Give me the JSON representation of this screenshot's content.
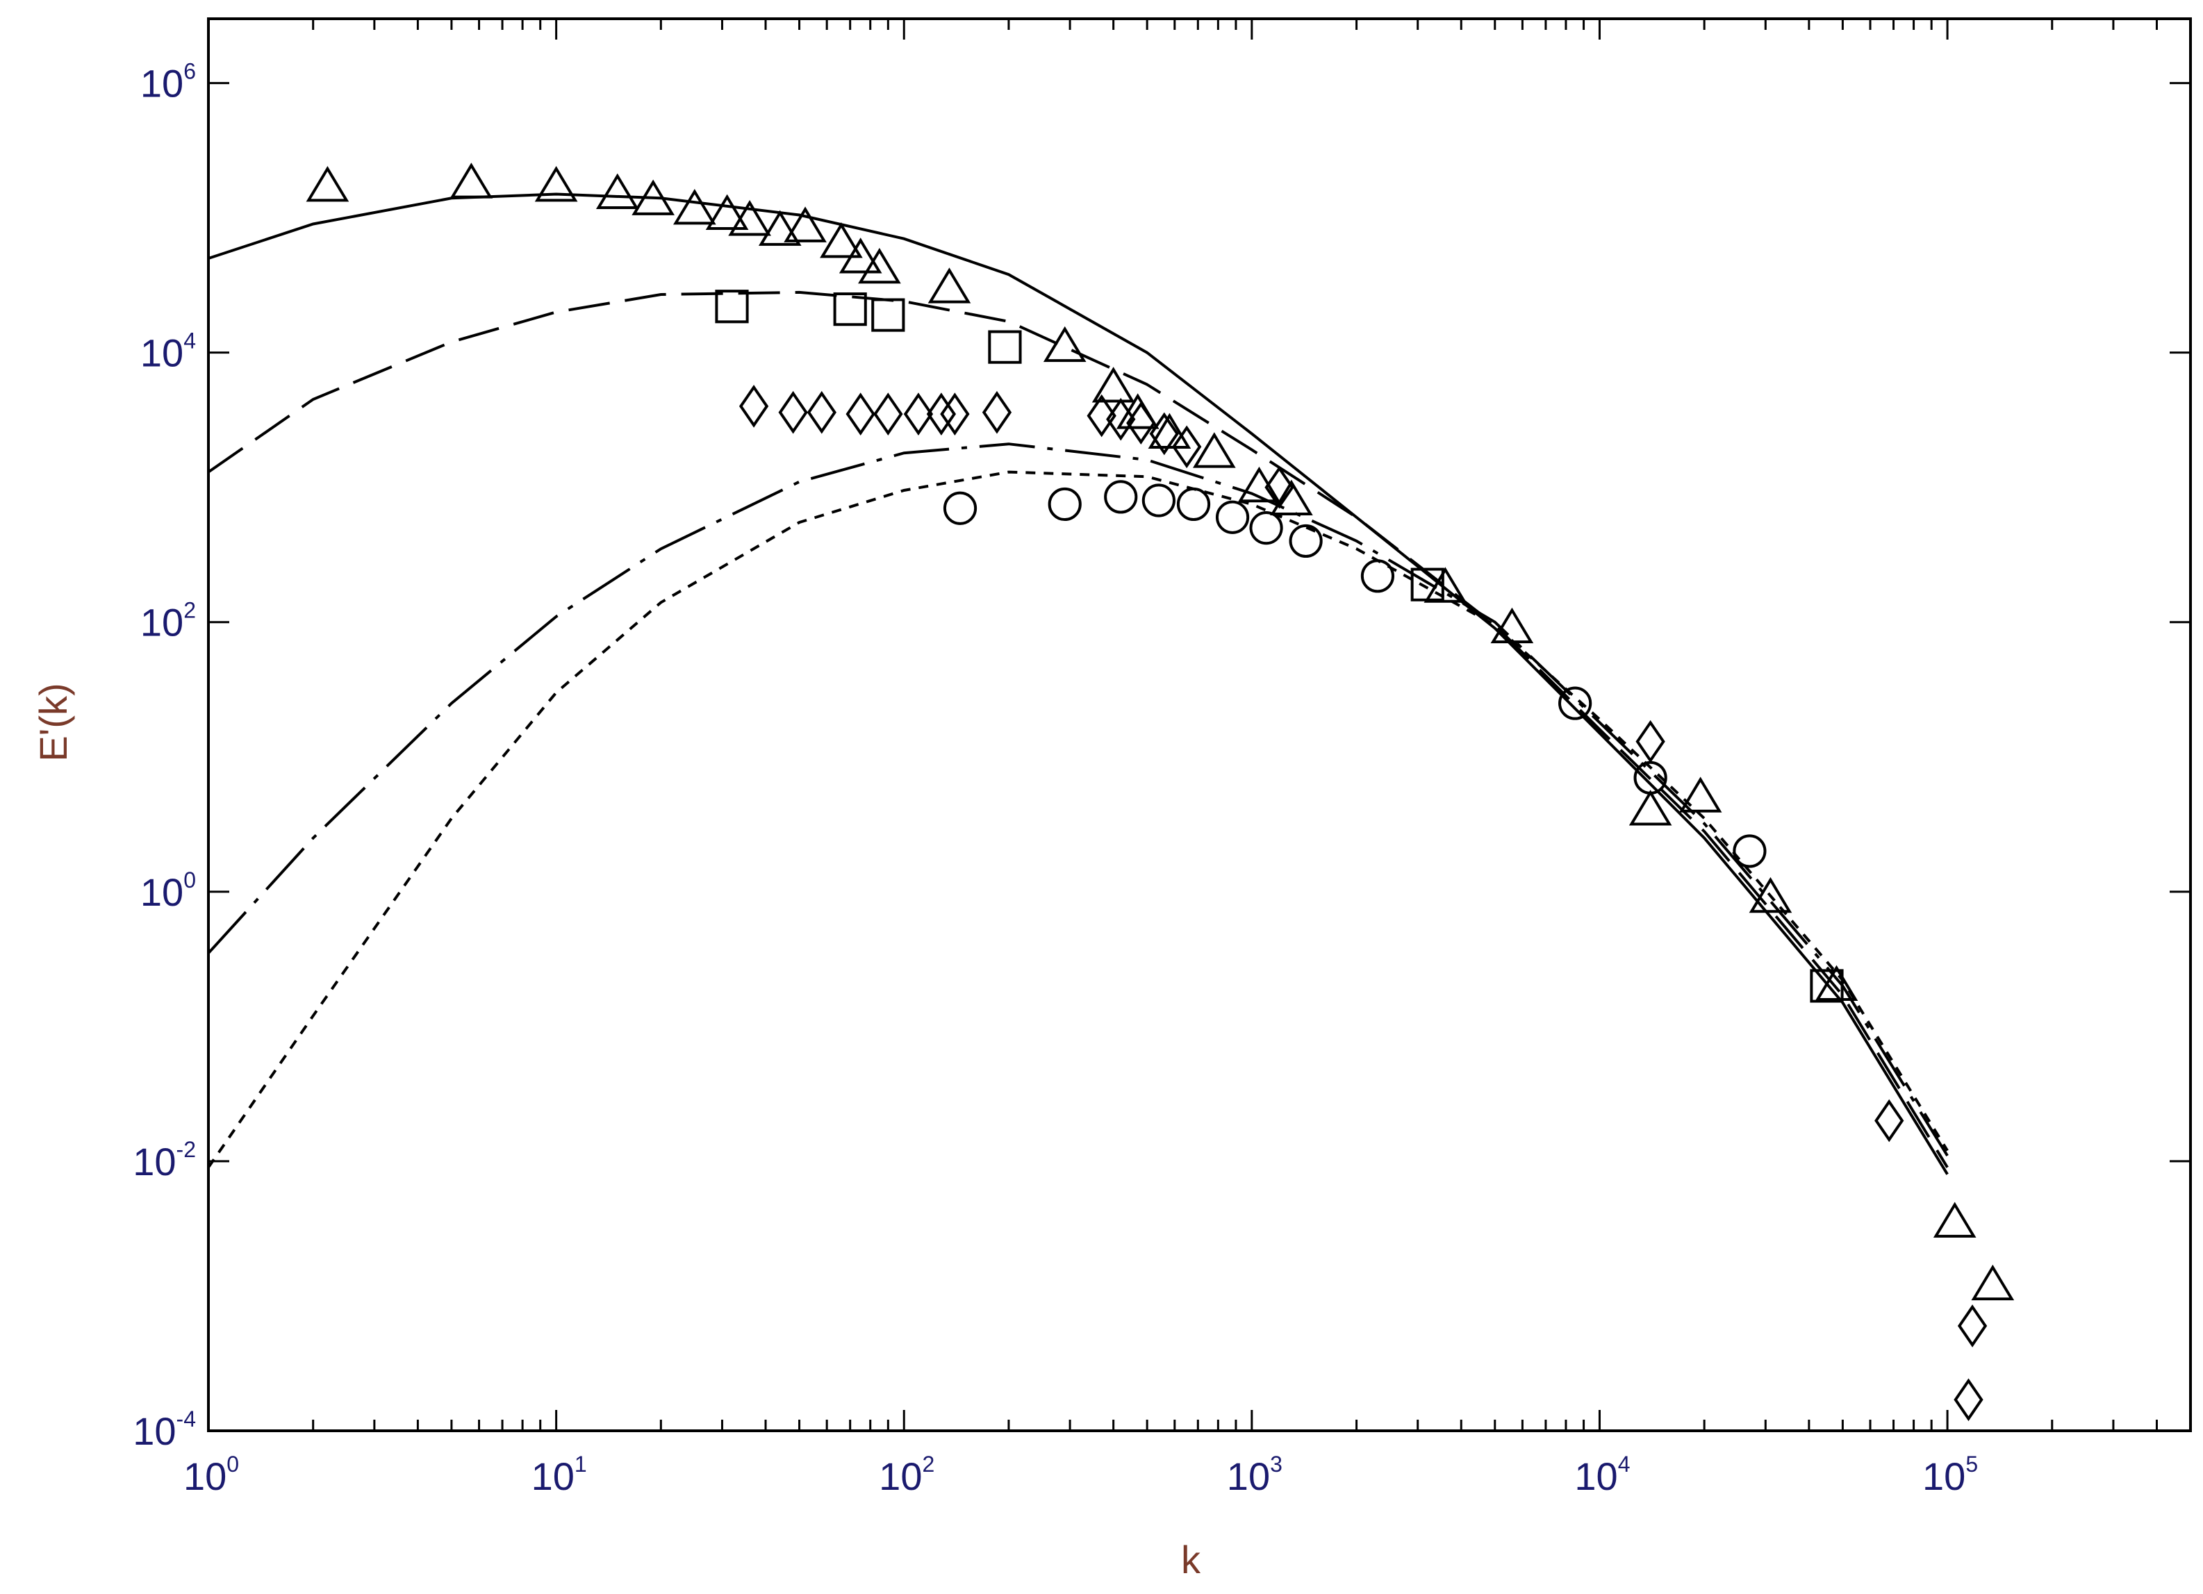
{
  "chart_data": {
    "type": "scatter",
    "title": "",
    "xlabel": "k",
    "ylabel": "E'(k)",
    "xscale": "log",
    "yscale": "log",
    "xlim": [
      1,
      500000
    ],
    "ylim": [
      0.0001,
      3000000
    ],
    "x_ticks": [
      {
        "base": "10",
        "exp": "0",
        "value": 1
      },
      {
        "base": "10",
        "exp": "1",
        "value": 10
      },
      {
        "base": "10",
        "exp": "2",
        "value": 100
      },
      {
        "base": "10",
        "exp": "3",
        "value": 1000
      },
      {
        "base": "10",
        "exp": "4",
        "value": 10000
      },
      {
        "base": "10",
        "exp": "5",
        "value": 100000
      }
    ],
    "y_ticks": [
      {
        "base": "10",
        "exp": "-4",
        "value": 0.0001
      },
      {
        "base": "10",
        "exp": "-2",
        "value": 0.01
      },
      {
        "base": "10",
        "exp": "0",
        "value": 1
      },
      {
        "base": "10",
        "exp": "2",
        "value": 100
      },
      {
        "base": "10",
        "exp": "4",
        "value": 10000
      },
      {
        "base": "10",
        "exp": "6",
        "value": 1000000
      }
    ],
    "grid": false,
    "legend": "none",
    "curves": [
      {
        "style": "solid",
        "x": [
          1,
          2,
          5,
          10,
          20,
          50,
          100,
          200,
          500,
          1000,
          2000,
          5000,
          10000,
          20000,
          50000,
          100000
        ],
        "y": [
          50000,
          90000,
          140000,
          150000,
          140000,
          105000,
          70000,
          38000,
          10000,
          2500,
          600,
          90,
          15,
          2.5,
          0.15,
          0.008
        ]
      },
      {
        "style": "long-dash",
        "x": [
          1,
          2,
          5,
          10,
          20,
          50,
          100,
          200,
          500,
          1000,
          2000,
          5000,
          10000,
          20000,
          50000,
          100000
        ],
        "y": [
          1300,
          4500,
          12000,
          20000,
          27000,
          28000,
          24000,
          17000,
          5800,
          1900,
          600,
          95,
          16,
          2.8,
          0.17,
          0.009
        ]
      },
      {
        "style": "dash-dot",
        "x": [
          1,
          2,
          5,
          10,
          20,
          50,
          100,
          200,
          500,
          1000,
          2000,
          5000,
          10000,
          20000,
          50000,
          100000
        ],
        "y": [
          0.35,
          2.5,
          25,
          110,
          350,
          1100,
          1800,
          2100,
          1600,
          900,
          400,
          100,
          18,
          3.2,
          0.2,
          0.011
        ]
      },
      {
        "style": "dotted",
        "x": [
          1,
          2,
          5,
          10,
          20,
          50,
          100,
          200,
          500,
          1000,
          2000,
          5000,
          10000,
          20000,
          50000,
          100000
        ],
        "y": [
          0.009,
          0.12,
          3.5,
          30,
          140,
          550,
          950,
          1300,
          1200,
          750,
          350,
          95,
          19,
          3.5,
          0.22,
          0.012
        ]
      }
    ],
    "series": [
      {
        "marker": "triangle",
        "x": [
          2.2,
          5.7,
          10,
          15,
          19,
          25,
          31,
          36,
          44,
          52,
          66,
          75,
          85,
          135,
          290,
          400,
          470,
          580,
          780,
          1050,
          1300,
          3600,
          5600,
          14000,
          19500,
          31000,
          48000,
          105000,
          135000
        ],
        "y": [
          170000,
          180000,
          170000,
          150000,
          135000,
          115000,
          105000,
          95000,
          80000,
          85000,
          65000,
          50000,
          42000,
          30000,
          11000,
          5500,
          3500,
          2500,
          1800,
          1000,
          800,
          180,
          90,
          4,
          5,
          0.9,
          0.2,
          0.0035,
          0.0012
        ]
      },
      {
        "marker": "square",
        "x": [
          32,
          70,
          90,
          195,
          3200,
          45000
        ],
        "y": [
          22000,
          21000,
          19000,
          11000,
          190,
          0.2
        ]
      },
      {
        "marker": "diamond",
        "x": [
          37,
          48,
          58,
          75,
          90,
          110,
          128,
          140,
          185,
          370,
          420,
          480,
          560,
          650,
          1200,
          14000,
          68000,
          118000,
          115000
        ],
        "y": [
          4000,
          3600,
          3600,
          3500,
          3500,
          3500,
          3500,
          3500,
          3600,
          3400,
          3200,
          3000,
          2500,
          2000,
          1000,
          13,
          0.02,
          0.0006,
          0.00017
        ]
      },
      {
        "marker": "circle",
        "x": [
          145,
          290,
          420,
          540,
          680,
          880,
          1100,
          1430,
          2300,
          8500,
          14000,
          27000
        ],
        "y": [
          700,
          750,
          850,
          800,
          750,
          600,
          500,
          400,
          220,
          25,
          7,
          2
        ]
      }
    ]
  }
}
